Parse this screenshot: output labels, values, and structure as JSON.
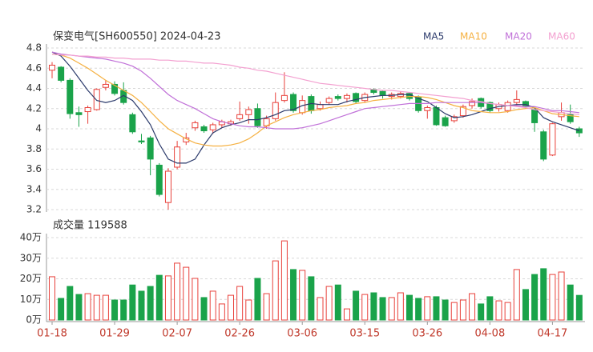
{
  "chart_data": [
    {
      "type": "candlestick",
      "title": "保变电气[SH600550] 2024-04-23",
      "categories": [
        "01-18",
        null,
        null,
        null,
        null,
        null,
        null,
        "01-29",
        null,
        null,
        null,
        null,
        null,
        null,
        "02-07",
        null,
        null,
        null,
        null,
        null,
        null,
        "02-26",
        null,
        null,
        null,
        null,
        null,
        null,
        "03-06",
        null,
        null,
        null,
        null,
        null,
        null,
        "03-15",
        null,
        null,
        null,
        null,
        null,
        null,
        "03-26",
        null,
        null,
        null,
        null,
        null,
        null,
        "04-08",
        null,
        null,
        null,
        null,
        null,
        null,
        "04-17",
        null,
        null,
        null
      ],
      "open": [
        4.58,
        4.61,
        4.48,
        4.16,
        4.17,
        4.19,
        4.41,
        4.44,
        4.38,
        4.14,
        3.88,
        3.91,
        3.64,
        3.27,
        3.62,
        3.87,
        4.01,
        4.02,
        3.99,
        4.04,
        4.05,
        4.1,
        4.14,
        4.2,
        4.03,
        4.1,
        4.28,
        4.34,
        4.16,
        4.32,
        4.2,
        4.26,
        4.32,
        4.3,
        4.35,
        4.28,
        4.39,
        4.37,
        4.32,
        4.32,
        4.35,
        4.31,
        4.18,
        4.21,
        4.11,
        4.08,
        4.13,
        4.23,
        4.3,
        4.26,
        4.2,
        4.18,
        4.26,
        4.27,
        4.19,
        3.97,
        3.74,
        4.12,
        4.14,
        4.0
      ],
      "high": [
        4.66,
        4.62,
        4.5,
        4.22,
        4.23,
        4.4,
        4.48,
        4.47,
        4.46,
        4.16,
        3.95,
        3.93,
        3.66,
        3.61,
        3.88,
        3.96,
        4.08,
        4.04,
        4.06,
        4.09,
        4.09,
        4.27,
        4.22,
        4.25,
        4.13,
        4.36,
        4.56,
        4.36,
        4.33,
        4.34,
        4.27,
        4.32,
        4.34,
        4.35,
        4.36,
        4.36,
        4.4,
        4.38,
        4.36,
        4.37,
        4.36,
        4.33,
        4.23,
        4.23,
        4.13,
        4.14,
        4.24,
        4.3,
        4.31,
        4.27,
        4.26,
        4.28,
        4.38,
        4.28,
        4.21,
        3.99,
        4.06,
        4.26,
        4.24,
        4.02
      ],
      "low": [
        4.5,
        4.46,
        4.1,
        4.02,
        4.05,
        4.18,
        4.38,
        4.33,
        4.24,
        3.95,
        3.85,
        3.54,
        3.33,
        3.2,
        3.6,
        3.84,
        3.98,
        3.96,
        3.95,
        4.01,
        4.03,
        4.08,
        4.05,
        4.01,
        4.0,
        4.08,
        4.26,
        4.16,
        4.14,
        4.15,
        4.18,
        4.24,
        4.28,
        4.26,
        4.25,
        4.26,
        4.34,
        4.3,
        4.29,
        4.3,
        4.28,
        4.16,
        4.1,
        4.03,
        4.02,
        4.06,
        4.11,
        4.2,
        4.2,
        4.16,
        4.17,
        4.16,
        4.22,
        4.2,
        3.97,
        3.68,
        3.73,
        4.08,
        4.05,
        3.92
      ],
      "close": [
        4.63,
        4.48,
        4.15,
        4.14,
        4.21,
        4.39,
        4.44,
        4.35,
        4.26,
        3.97,
        3.87,
        3.7,
        3.35,
        3.58,
        3.82,
        3.91,
        4.06,
        3.98,
        4.04,
        4.07,
        4.07,
        4.14,
        4.19,
        4.03,
        4.1,
        4.26,
        4.33,
        4.18,
        4.28,
        4.18,
        4.24,
        4.3,
        4.3,
        4.33,
        4.27,
        4.34,
        4.36,
        4.33,
        4.34,
        4.35,
        4.3,
        4.18,
        4.21,
        4.04,
        4.03,
        4.12,
        4.22,
        4.27,
        4.22,
        4.18,
        4.24,
        4.26,
        4.29,
        4.22,
        4.06,
        3.7,
        4.05,
        4.16,
        4.07,
        3.96
      ],
      "up_color": "#e8413b",
      "down_color": "#1aa34a",
      "series": [
        {
          "name": "MA5",
          "color": "#2b3a6b",
          "values": [
            4.76,
            4.72,
            4.62,
            4.5,
            4.38,
            4.28,
            4.26,
            4.28,
            4.33,
            4.28,
            4.17,
            4.04,
            3.85,
            3.7,
            3.66,
            3.66,
            3.7,
            3.84,
            3.96,
            4.01,
            4.04,
            4.06,
            4.09,
            4.09,
            4.11,
            4.14,
            4.18,
            4.19,
            4.23,
            4.25,
            4.24,
            4.24,
            4.24,
            4.27,
            4.29,
            4.31,
            4.32,
            4.33,
            4.33,
            4.34,
            4.34,
            4.3,
            4.27,
            4.21,
            4.15,
            4.11,
            4.12,
            4.14,
            4.17,
            4.2,
            4.22,
            4.23,
            4.24,
            4.24,
            4.21,
            4.11,
            4.07,
            4.04,
            4.01,
            3.98
          ]
        },
        {
          "name": "MA10",
          "color": "#f5b041",
          "values": [
            4.74,
            4.73,
            4.7,
            4.65,
            4.6,
            4.54,
            4.48,
            4.43,
            4.38,
            4.33,
            4.26,
            4.17,
            4.08,
            4.0,
            3.95,
            3.9,
            3.86,
            3.84,
            3.83,
            3.83,
            3.84,
            3.86,
            3.9,
            3.96,
            4.03,
            4.07,
            4.11,
            4.14,
            4.16,
            4.18,
            4.19,
            4.21,
            4.22,
            4.23,
            4.25,
            4.26,
            4.28,
            4.29,
            4.3,
            4.31,
            4.32,
            4.32,
            4.31,
            4.29,
            4.26,
            4.23,
            4.21,
            4.18,
            4.17,
            4.16,
            4.16,
            4.17,
            4.19,
            4.2,
            4.21,
            4.18,
            4.15,
            4.14,
            4.13,
            4.12
          ]
        },
        {
          "name": "MA20",
          "color": "#c070d8",
          "values": [
            4.76,
            4.74,
            4.73,
            4.72,
            4.71,
            4.7,
            4.69,
            4.67,
            4.65,
            4.62,
            4.57,
            4.5,
            4.42,
            4.34,
            4.28,
            4.24,
            4.2,
            4.15,
            4.1,
            4.07,
            4.05,
            4.03,
            4.02,
            4.02,
            4.01,
            4.0,
            4.0,
            4.0,
            4.01,
            4.03,
            4.05,
            4.08,
            4.11,
            4.14,
            4.17,
            4.2,
            4.21,
            4.22,
            4.23,
            4.24,
            4.25,
            4.25,
            4.25,
            4.26,
            4.26,
            4.26,
            4.26,
            4.26,
            4.26,
            4.25,
            4.24,
            4.23,
            4.23,
            4.22,
            4.22,
            4.2,
            4.18,
            4.18,
            4.17,
            4.16
          ]
        },
        {
          "name": "MA60",
          "color": "#f3a0d0",
          "values": [
            4.74,
            4.73,
            4.73,
            4.72,
            4.72,
            4.71,
            4.71,
            4.7,
            4.7,
            4.69,
            4.69,
            4.69,
            4.68,
            4.68,
            4.67,
            4.67,
            4.66,
            4.65,
            4.65,
            4.64,
            4.63,
            4.61,
            4.6,
            4.58,
            4.57,
            4.55,
            4.53,
            4.51,
            4.49,
            4.47,
            4.45,
            4.44,
            4.43,
            4.42,
            4.41,
            4.4,
            4.39,
            4.38,
            4.38,
            4.37,
            4.36,
            4.35,
            4.34,
            4.33,
            4.32,
            4.31,
            4.3,
            4.28,
            4.27,
            4.25,
            4.24,
            4.23,
            4.22,
            4.21,
            4.19,
            4.18,
            4.17,
            4.16,
            4.15,
            4.14
          ]
        }
      ],
      "ylim": [
        3.2,
        4.8
      ],
      "yticks": [
        4.8,
        4.6,
        4.4,
        4.2,
        4,
        3.8,
        3.6,
        3.4,
        3.2
      ],
      "grid": true
    },
    {
      "type": "bar",
      "title": "成交量 119588",
      "values": [
        21,
        10.5,
        16.3,
        12.4,
        12.8,
        12,
        12,
        9.7,
        9.7,
        17,
        14,
        16.3,
        21.7,
        21.4,
        27.6,
        25.6,
        20.2,
        10.9,
        14,
        7.8,
        12,
        16.3,
        9.7,
        20.2,
        12.8,
        28.7,
        38.4,
        24.5,
        24.1,
        21,
        10.9,
        16.3,
        17,
        5.4,
        14,
        12.4,
        13.2,
        10.9,
        10.9,
        13.2,
        12,
        10.5,
        11.3,
        11.3,
        9.7,
        8.5,
        9.7,
        12.8,
        7.8,
        11.3,
        9.3,
        8.5,
        24.5,
        14.8,
        22.1,
        24.9,
        22.1,
        23.3,
        17,
        11.9588
      ],
      "ylim": [
        0,
        40
      ],
      "yticks": [
        {
          "value": 40,
          "label": "40万"
        },
        {
          "value": 30,
          "label": "30万"
        },
        {
          "value": 20,
          "label": "20万"
        },
        {
          "value": 10,
          "label": "10万"
        },
        {
          "value": 0,
          "label": "0万"
        }
      ],
      "grid": true
    }
  ]
}
